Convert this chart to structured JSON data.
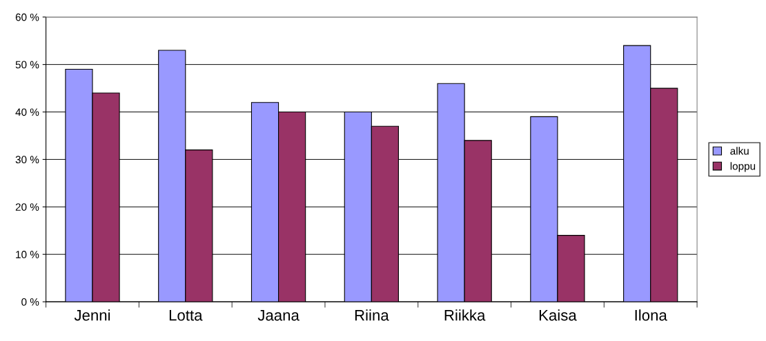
{
  "chart_data": {
    "type": "bar",
    "categories": [
      "Jenni",
      "Lotta",
      "Jaana",
      "Riina",
      "Riikka",
      "Kaisa",
      "Ilona"
    ],
    "series": [
      {
        "name": "alku",
        "color": "#9999ff",
        "values": [
          49,
          53,
          42,
          40,
          46,
          39,
          54
        ]
      },
      {
        "name": "loppu",
        "color": "#993366",
        "values": [
          44,
          32,
          40,
          37,
          34,
          14,
          45
        ]
      }
    ],
    "ylim": [
      0,
      60
    ],
    "yticks": [
      {
        "value": 0,
        "label": "0 %"
      },
      {
        "value": 10,
        "label": "10 %"
      },
      {
        "value": 20,
        "label": "20 %"
      },
      {
        "value": 30,
        "label": "30 %"
      },
      {
        "value": 40,
        "label": "40 %"
      },
      {
        "value": 50,
        "label": "50 %"
      },
      {
        "value": 60,
        "label": "60 %"
      }
    ],
    "grid": "y",
    "legend": "right"
  }
}
